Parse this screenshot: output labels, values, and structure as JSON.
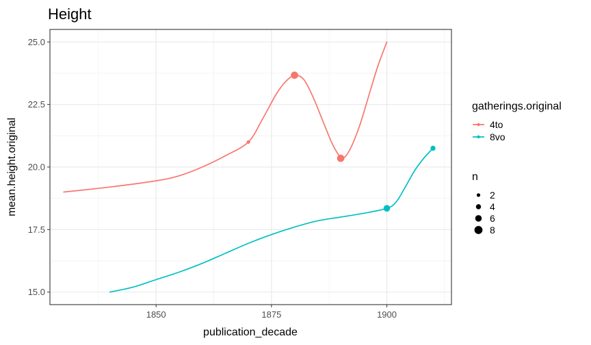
{
  "chart_data": {
    "type": "line",
    "title": "Height",
    "xlabel": "publication_decade",
    "ylabel": "mean.height.original",
    "xlim": [
      1827,
      1914
    ],
    "ylim": [
      14.5,
      25.5
    ],
    "x_ticks": [
      1850,
      1875,
      1900
    ],
    "x_tick_labels": [
      "1850",
      "1875",
      "1900"
    ],
    "y_ticks": [
      15,
      17.5,
      20,
      22.5,
      25
    ],
    "y_tick_labels": [
      "15.0",
      "17.5",
      "20.0",
      "22.5",
      "25.0"
    ],
    "grid": true,
    "legend_position": "right",
    "color_legend": {
      "title": "gatherings.original",
      "entries": [
        {
          "name": "4to",
          "color": "#F8766D"
        },
        {
          "name": "8vo",
          "color": "#00BFC4"
        }
      ]
    },
    "size_legend": {
      "title": "n",
      "entries": [
        {
          "label": "2",
          "value": 2
        },
        {
          "label": "4",
          "value": 4
        },
        {
          "label": "6",
          "value": 6
        },
        {
          "label": "8",
          "value": 8
        }
      ]
    },
    "series": [
      {
        "name": "4to",
        "color": "#F8766D",
        "curve": [
          [
            1830,
            19.0
          ],
          [
            1840,
            19.2
          ],
          [
            1850,
            19.45
          ],
          [
            1855,
            19.65
          ],
          [
            1860,
            20.0
          ],
          [
            1865,
            20.45
          ],
          [
            1870,
            21.0
          ],
          [
            1873,
            21.9
          ],
          [
            1876,
            22.9
          ],
          [
            1878,
            23.4
          ],
          [
            1880,
            23.67
          ],
          [
            1882,
            23.5
          ],
          [
            1884,
            22.8
          ],
          [
            1886,
            21.9
          ],
          [
            1888,
            21.0
          ],
          [
            1889.5,
            20.5
          ],
          [
            1890.5,
            20.35
          ],
          [
            1892,
            20.7
          ],
          [
            1894,
            21.6
          ],
          [
            1896,
            22.8
          ],
          [
            1898,
            24.0
          ],
          [
            1900,
            25.0
          ]
        ],
        "points": [
          {
            "x": 1870,
            "y": 21.0,
            "n": 2
          },
          {
            "x": 1880,
            "y": 23.67,
            "n": 7
          },
          {
            "x": 1890,
            "y": 20.35,
            "n": 7
          }
        ]
      },
      {
        "name": "8vo",
        "color": "#00BFC4",
        "curve": [
          [
            1840,
            15.0
          ],
          [
            1845,
            15.2
          ],
          [
            1850,
            15.5
          ],
          [
            1855,
            15.8
          ],
          [
            1860,
            16.15
          ],
          [
            1865,
            16.55
          ],
          [
            1870,
            16.95
          ],
          [
            1875,
            17.3
          ],
          [
            1880,
            17.6
          ],
          [
            1885,
            17.85
          ],
          [
            1890,
            18.0
          ],
          [
            1895,
            18.15
          ],
          [
            1900,
            18.35
          ],
          [
            1902,
            18.6
          ],
          [
            1904,
            19.2
          ],
          [
            1906,
            19.85
          ],
          [
            1908,
            20.35
          ],
          [
            1910,
            20.75
          ]
        ],
        "points": [
          {
            "x": 1900,
            "y": 18.35,
            "n": 6
          },
          {
            "x": 1910,
            "y": 20.75,
            "n": 4
          }
        ]
      }
    ]
  }
}
